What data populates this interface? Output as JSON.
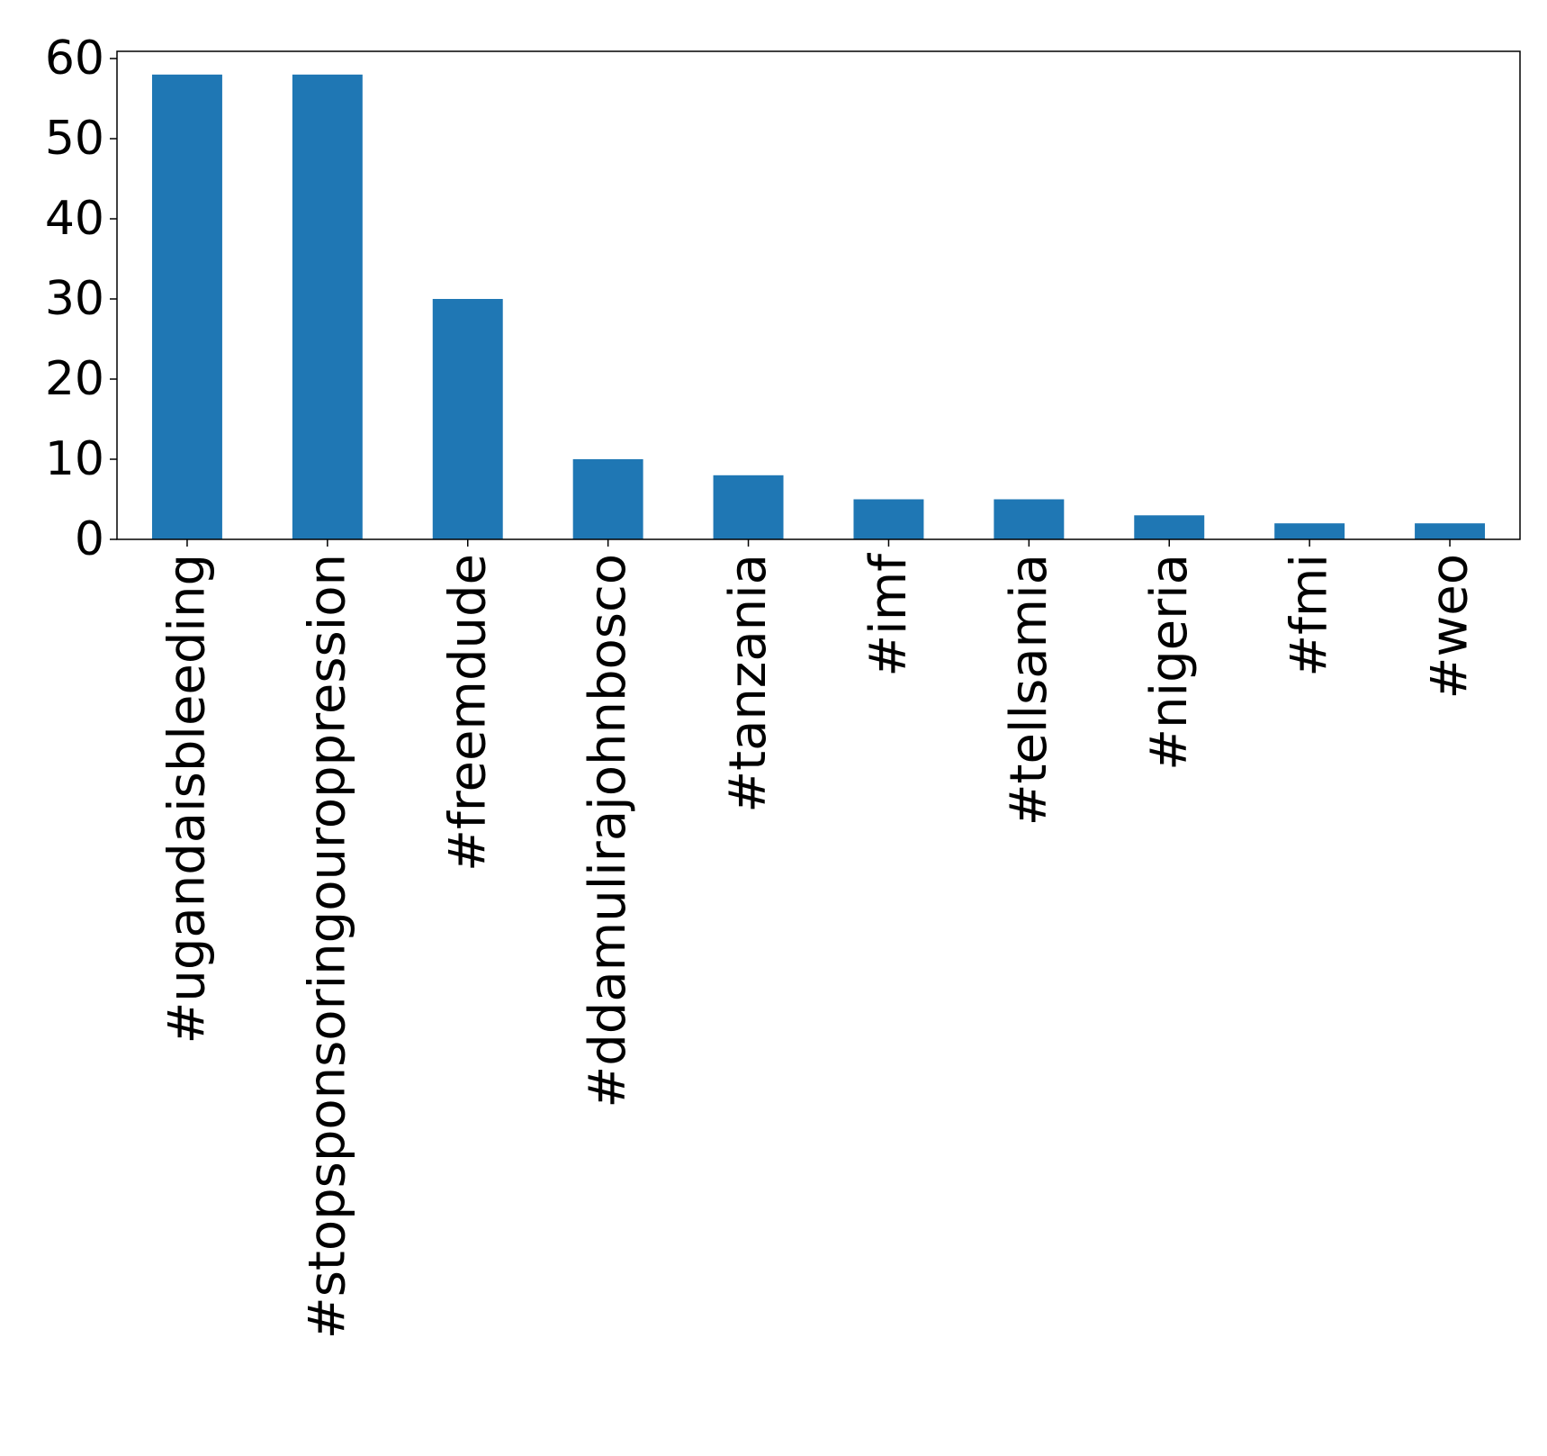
{
  "chart_data": {
    "type": "bar",
    "title": "",
    "xlabel": "",
    "ylabel": "",
    "categories": [
      "#ugandaisbleeding",
      "#stopsponsoringouroppression",
      "#freemdude",
      "#ddamulirajohnbosco",
      "#tanzania",
      "#imf",
      "#tellsamia",
      "#nigeria",
      "#fmi",
      "#weo"
    ],
    "values": [
      58,
      58,
      30,
      10,
      8,
      5,
      5,
      3,
      2,
      2
    ],
    "ylim": [
      0,
      60.9
    ],
    "yticks": [
      0,
      10,
      20,
      30,
      40,
      50,
      60
    ],
    "grid": false,
    "legend": "none",
    "bar_color": "#1f77b4"
  }
}
